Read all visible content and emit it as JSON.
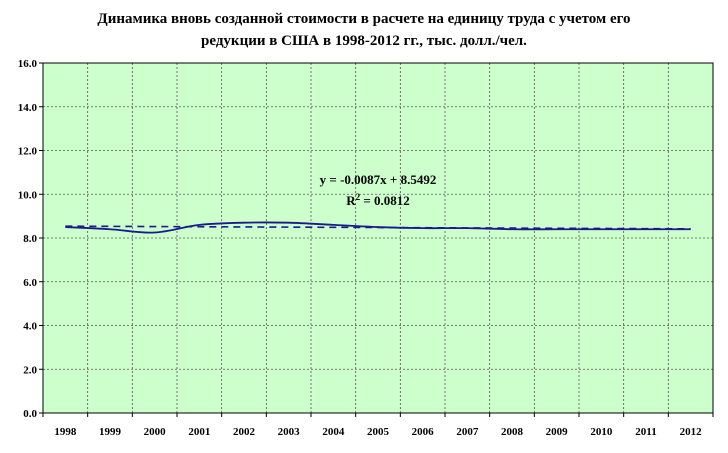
{
  "chart_data": {
    "type": "line",
    "title_line1": "Динамика вновь созданной стоимости в расчете на единицу труда с учетом его",
    "title_line2": "редукции в США в 1998-2012 гг., тыс. долл./чел.",
    "xlabel": "",
    "ylabel": "",
    "categories": [
      "1998",
      "1999",
      "2000",
      "2001",
      "2002",
      "2003",
      "2004",
      "2005",
      "2006",
      "2007",
      "2008",
      "2009",
      "2010",
      "2011",
      "2012"
    ],
    "ylim": [
      0,
      16
    ],
    "yticks": [
      "0.0",
      "2.0",
      "4.0",
      "6.0",
      "8.0",
      "10.0",
      "12.0",
      "14.0",
      "16.0"
    ],
    "grid": true,
    "series": [
      {
        "values": [
          8.5,
          8.4,
          8.25,
          8.6,
          8.7,
          8.7,
          8.6,
          8.5,
          8.45,
          8.45,
          8.4,
          8.4,
          8.4,
          8.4,
          8.4
        ],
        "color": "#1a1a8c",
        "style": "solid"
      }
    ],
    "trendline": {
      "slope": -0.0087,
      "intercept": 8.5492,
      "color": "#1a1a8c",
      "style": "dashed",
      "equation_label": "y = -0.0087x + 8.5492",
      "r2_label_prefix": "R",
      "r2_label_sup": "2",
      "r2_label_suffix": " = 0.0812"
    },
    "colors": {
      "plot_background": "#ccffcc",
      "grid": "#555555",
      "axis": "#000000"
    }
  }
}
